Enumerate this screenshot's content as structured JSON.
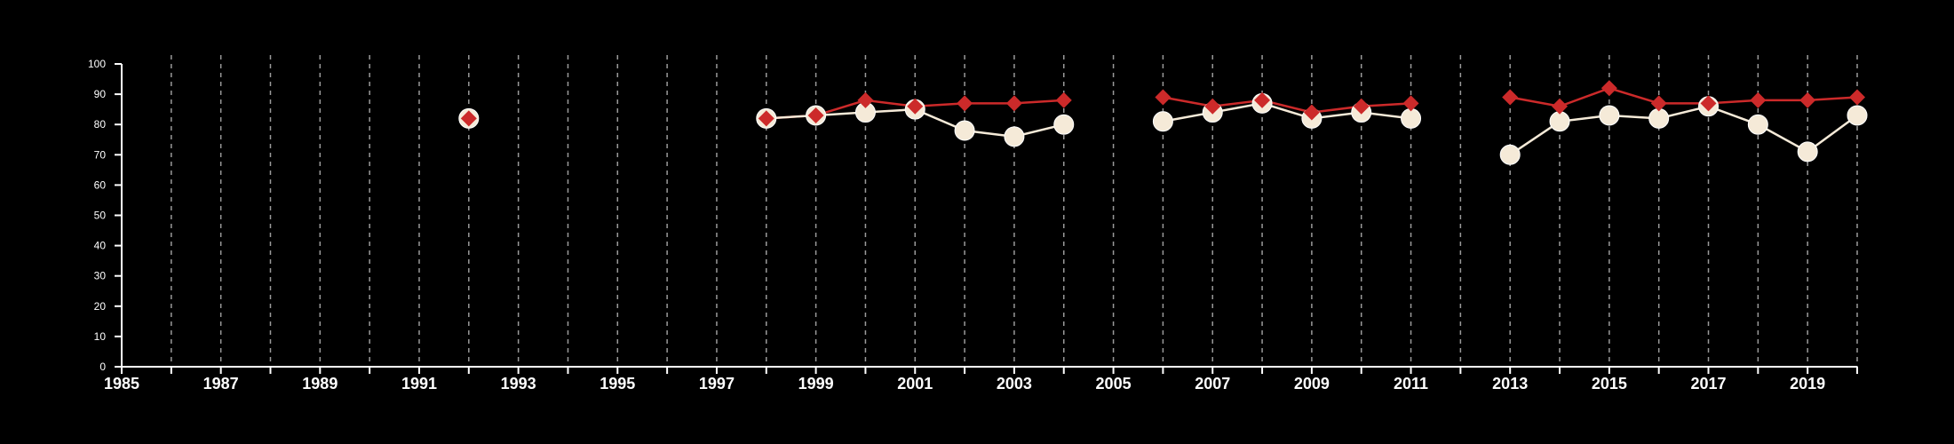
{
  "chart_data": {
    "type": "line",
    "title": "",
    "xlabel": "",
    "ylabel": "",
    "xlim": [
      1985,
      2020
    ],
    "ylim": [
      0,
      100
    ],
    "x_ticks": [
      1985,
      1987,
      1989,
      1991,
      1993,
      1995,
      1997,
      1999,
      2001,
      2003,
      2005,
      2007,
      2009,
      2011,
      2013,
      2015,
      2017,
      2019
    ],
    "y_ticks": [
      0,
      10,
      20,
      30,
      40,
      50,
      60,
      70,
      80,
      90,
      100
    ],
    "vertical_grid": "dashed, every year",
    "legend": "none",
    "series": [
      {
        "marker": "diamond",
        "color": "#cc2a2a",
        "points": [
          [
            1992,
            82
          ],
          [
            1998,
            82
          ],
          [
            1999,
            83
          ],
          [
            2000,
            88
          ],
          [
            2001,
            86
          ],
          [
            2002,
            87
          ],
          [
            2003,
            87
          ],
          [
            2004,
            88
          ],
          [
            2006,
            89
          ],
          [
            2007,
            86
          ],
          [
            2008,
            88
          ],
          [
            2009,
            84
          ],
          [
            2010,
            86
          ],
          [
            2011,
            87
          ],
          [
            2013,
            89
          ],
          [
            2014,
            86
          ],
          [
            2015,
            92
          ],
          [
            2016,
            87
          ],
          [
            2017,
            87
          ],
          [
            2018,
            88
          ],
          [
            2019,
            88
          ],
          [
            2020,
            89
          ]
        ]
      },
      {
        "marker": "circle",
        "color": "#f5ead8",
        "points": [
          [
            1992,
            82
          ],
          [
            1998,
            82
          ],
          [
            1999,
            83
          ],
          [
            2000,
            84
          ],
          [
            2001,
            85
          ],
          [
            2002,
            78
          ],
          [
            2003,
            76
          ],
          [
            2004,
            80
          ],
          [
            2006,
            81
          ],
          [
            2007,
            84
          ],
          [
            2008,
            87
          ],
          [
            2009,
            82
          ],
          [
            2010,
            84
          ],
          [
            2011,
            82
          ],
          [
            2013,
            70
          ],
          [
            2014,
            81
          ],
          [
            2015,
            83
          ],
          [
            2016,
            82
          ],
          [
            2017,
            86
          ],
          [
            2018,
            80
          ],
          [
            2019,
            71
          ],
          [
            2020,
            83
          ]
        ]
      }
    ]
  }
}
